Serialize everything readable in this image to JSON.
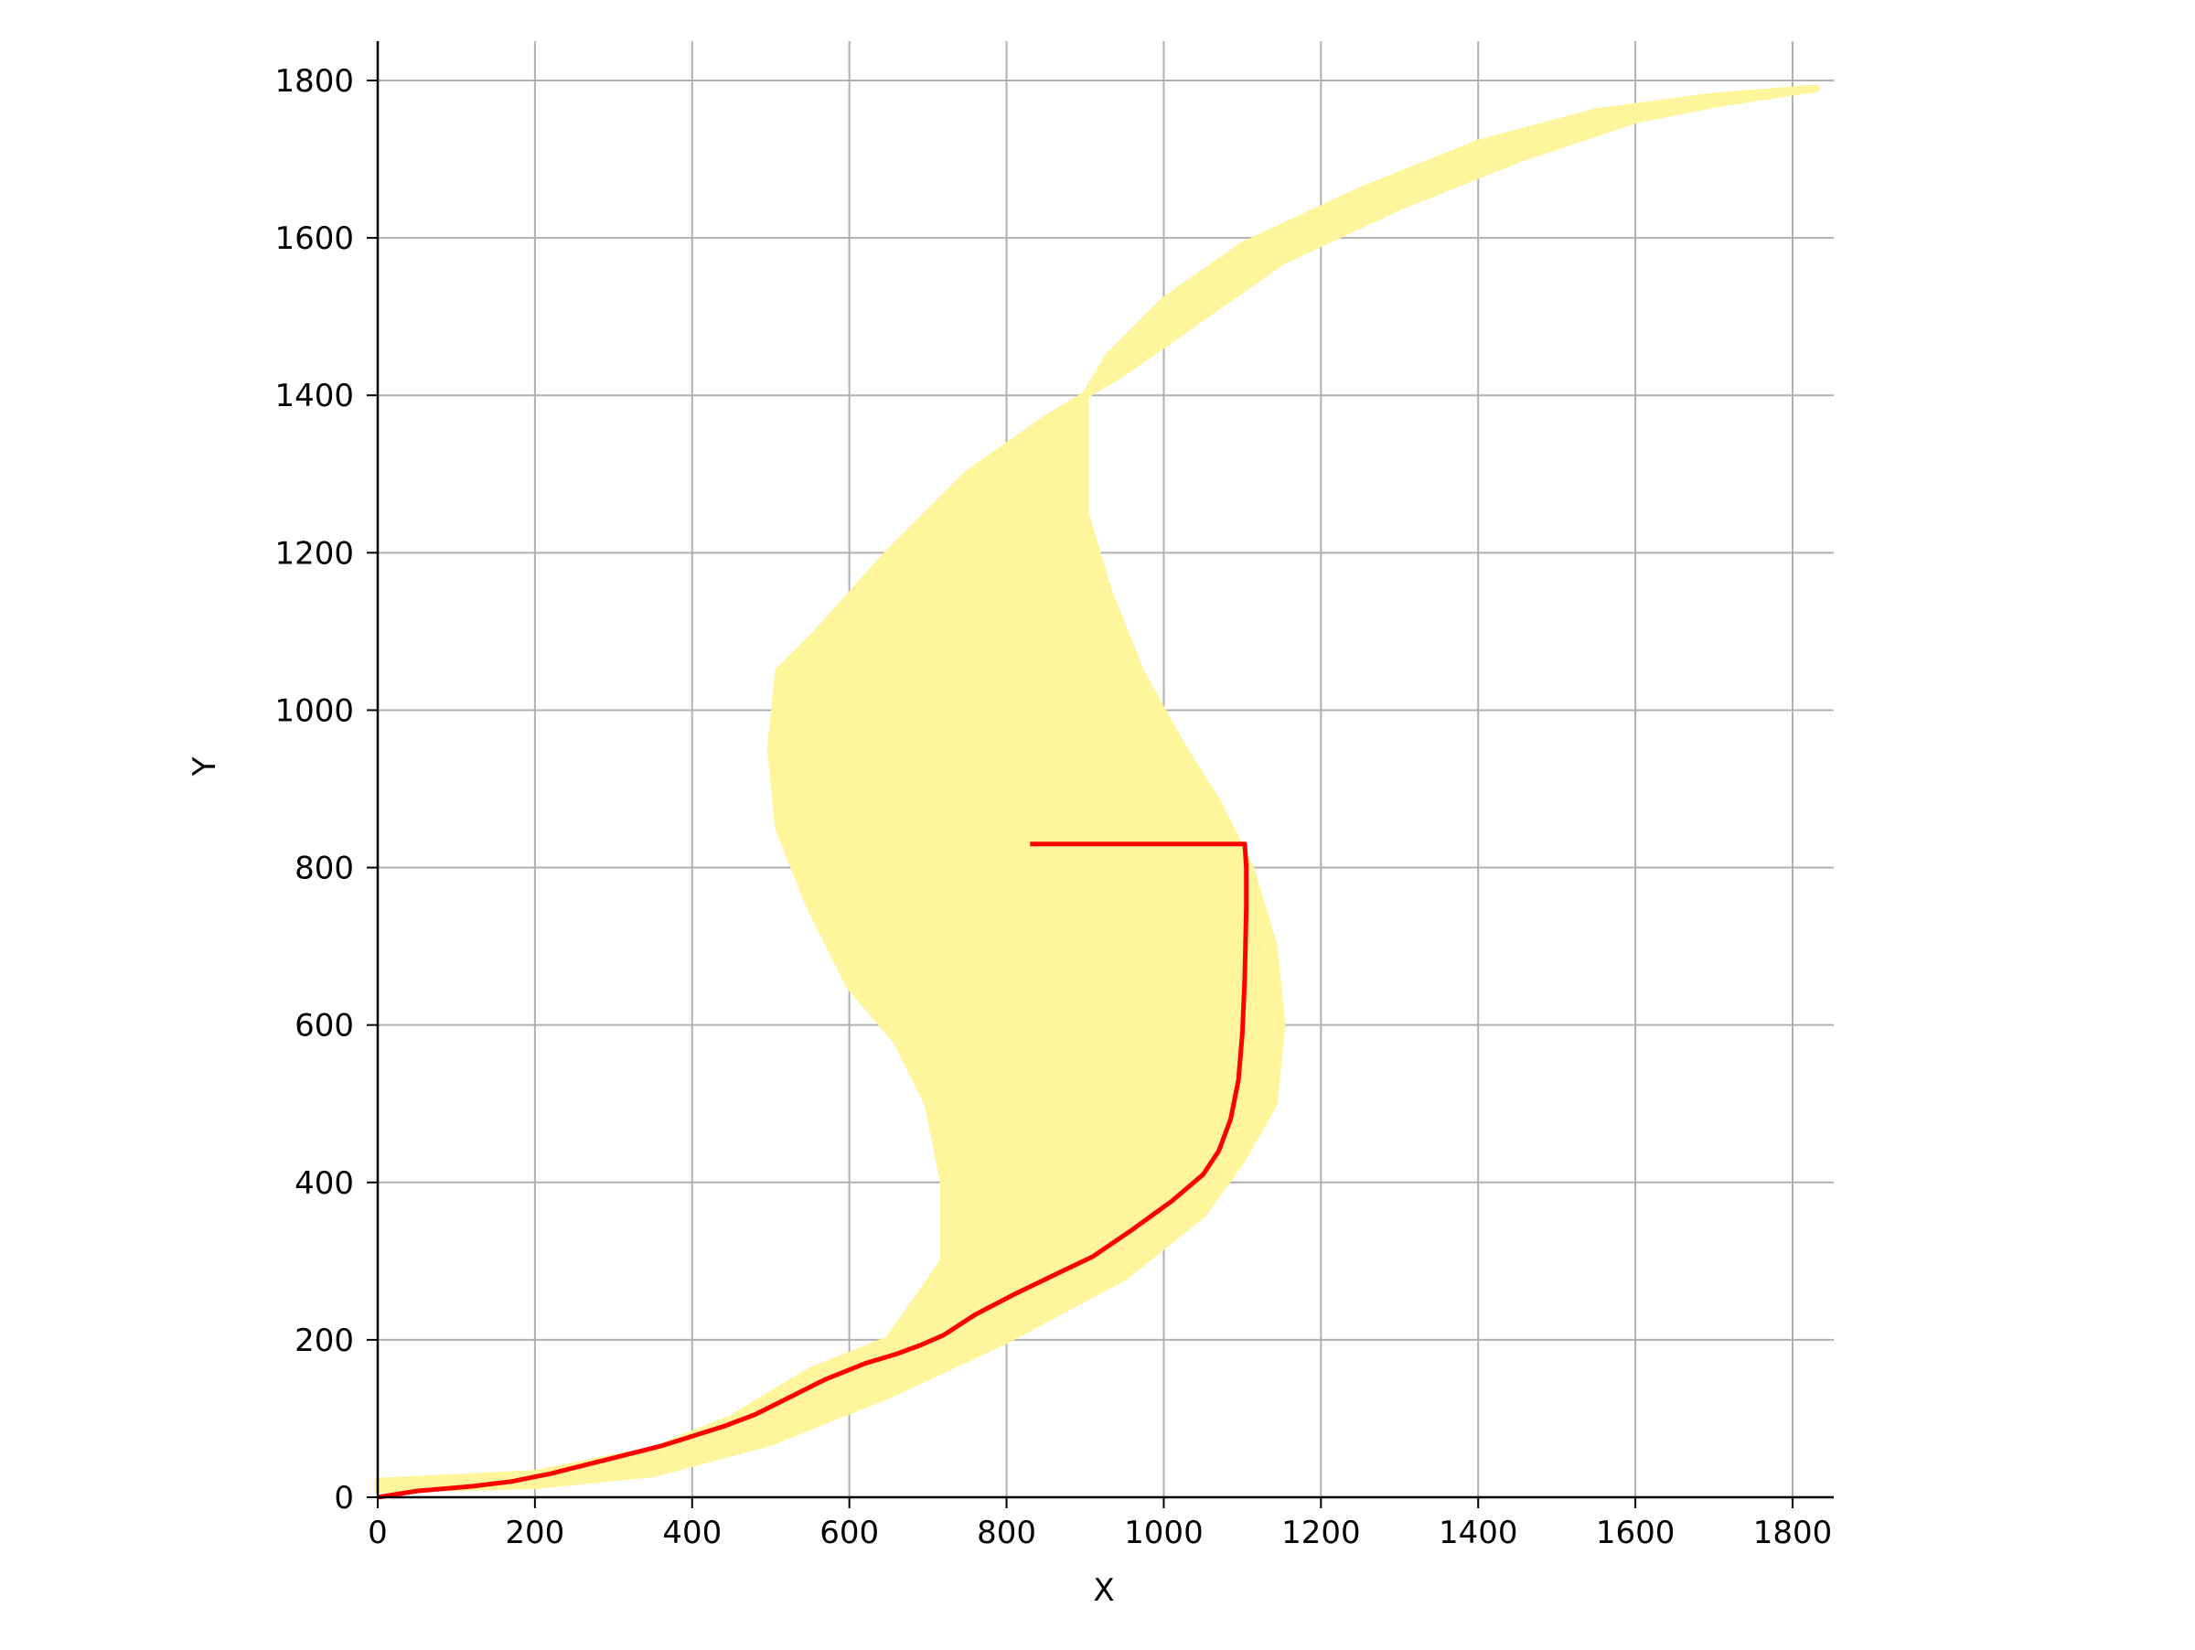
{
  "chart_data": {
    "type": "line",
    "title": "",
    "xlabel": "X",
    "ylabel": "Y",
    "xlim": [
      0,
      1850
    ],
    "ylim": [
      0,
      1850
    ],
    "x_ticks": [
      "0",
      "200",
      "400",
      "600",
      "800",
      "1000",
      "1200",
      "1400",
      "1600",
      "1800"
    ],
    "y_ticks": [
      "0",
      "200",
      "400",
      "600",
      "800",
      "1000",
      "1200",
      "1400",
      "1600",
      "1800"
    ],
    "grid": true,
    "legend": "none",
    "colors": {
      "road": "#fff59d",
      "path": "#ff0000",
      "grid": "#b0b0b0",
      "axis": "#000000"
    },
    "series": [
      {
        "kind": "track-left-edge",
        "x": [
          0,
          200,
          350,
          450,
          550,
          650,
          720,
          720,
          700,
          660,
          600,
          550,
          510,
          500,
          510,
          560,
          650,
          750,
          850,
          950,
          1050,
          1150,
          1300,
          1450,
          1600,
          1700,
          1830
        ],
        "y": [
          20,
          30,
          60,
          100,
          160,
          200,
          300,
          400,
          500,
          580,
          650,
          750,
          850,
          950,
          1050,
          1100,
          1200,
          1300,
          1370,
          1430,
          1500,
          1570,
          1640,
          1700,
          1750,
          1770,
          1790
        ]
      },
      {
        "kind": "track-right-edge",
        "x": [
          0,
          200,
          350,
          500,
          650,
          800,
          950,
          1050,
          1100,
          1140,
          1150,
          1140,
          1110,
          1070,
          1020,
          970,
          930,
          900,
          900,
          930,
          1000,
          1100,
          1250,
          1400,
          1550,
          1700,
          1830
        ],
        "y": [
          10,
          15,
          30,
          70,
          130,
          200,
          280,
          360,
          430,
          500,
          600,
          700,
          800,
          880,
          960,
          1050,
          1150,
          1250,
          1400,
          1450,
          1520,
          1590,
          1660,
          1720,
          1760,
          1780,
          1790
        ]
      },
      {
        "kind": "path",
        "x": [
          0,
          50,
          120,
          170,
          220,
          280,
          360,
          440,
          480,
          530,
          570,
          620,
          660,
          690,
          720,
          760,
          810,
          860,
          910,
          960,
          1010,
          1050,
          1070,
          1085,
          1095,
          1100,
          1103,
          1105,
          1105,
          1103,
          1097,
          1070,
          1030,
          960,
          910,
          880,
          830
        ],
        "y": [
          0,
          8,
          14,
          20,
          30,
          45,
          65,
          90,
          105,
          130,
          150,
          170,
          182,
          193,
          206,
          232,
          258,
          282,
          306,
          340,
          376,
          410,
          440,
          480,
          530,
          590,
          660,
          750,
          800,
          830,
          830,
          830,
          830,
          830,
          830,
          830,
          830
        ]
      }
    ]
  }
}
